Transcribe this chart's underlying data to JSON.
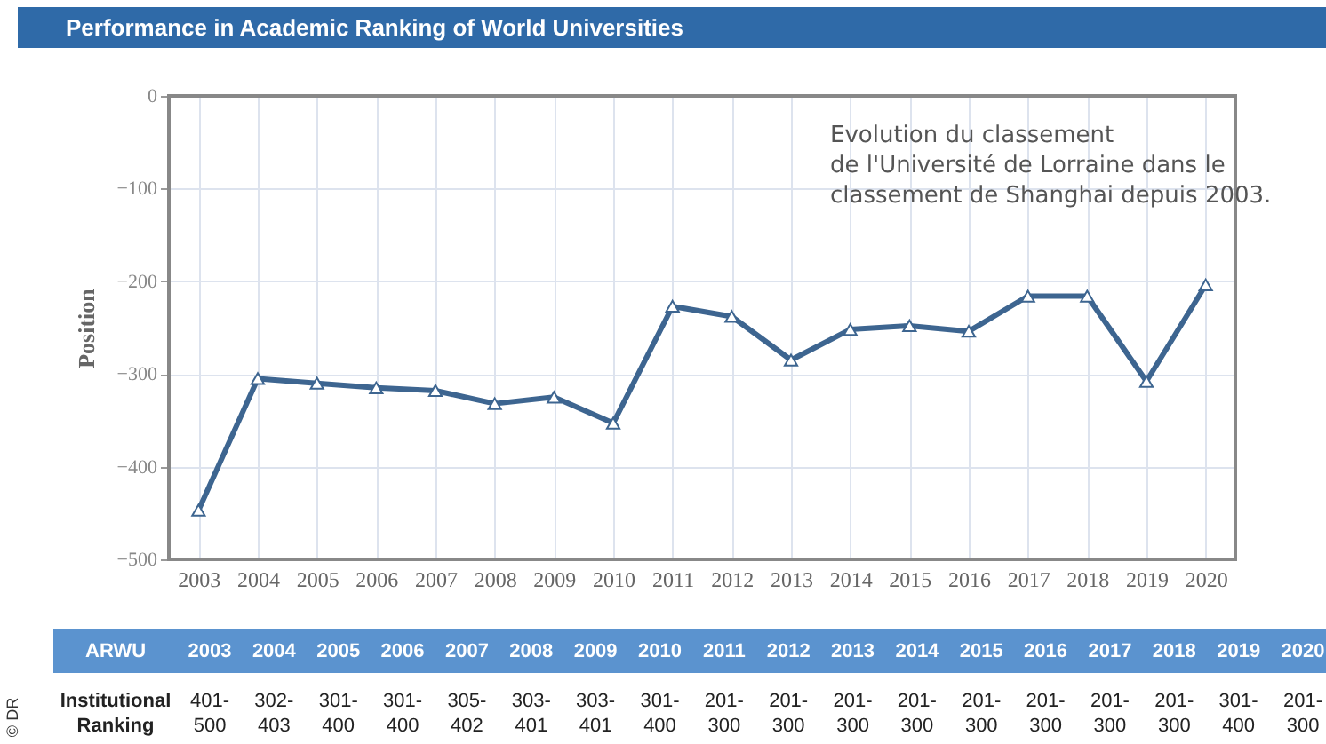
{
  "chart_data": {
    "type": "line",
    "title": "Performance in Academic Ranking of World Universities",
    "ylabel": "Position",
    "categories": [
      "2003",
      "2004",
      "2005",
      "2006",
      "2007",
      "2008",
      "2009",
      "2010",
      "2011",
      "2012",
      "2013",
      "2014",
      "2015",
      "2016",
      "2017",
      "2018",
      "2019",
      "2020"
    ],
    "series": [
      {
        "color": "#3d6590",
        "values": [
          -447,
          -305,
          -310,
          -315,
          -318,
          -332,
          -325,
          -353,
          -227,
          -238,
          -285,
          -252,
          -248,
          -254,
          -216,
          -216,
          -308,
          -204
        ]
      }
    ],
    "ylim": [
      -500,
      0
    ],
    "yticks": [
      -500,
      -400,
      -300,
      -200,
      -100,
      0
    ],
    "grid": true,
    "marker": "triangle",
    "line_style": "solid",
    "annotations": [
      "Evolution du classement\nde l'Université de Lorraine dans le\nclassement de Shanghai depuis 2003.",
      "© DR",
      "ARWU",
      "Institutional Ranking",
      "401-500",
      "302-403",
      "301-400",
      "301-400",
      "305-402",
      "303-401",
      "303-401",
      "301-400",
      "201-300",
      "201-300",
      "201-300",
      "201-300",
      "201-300",
      "201-300",
      "201-300",
      "201-300",
      "301-400",
      "201-300"
    ]
  }
}
